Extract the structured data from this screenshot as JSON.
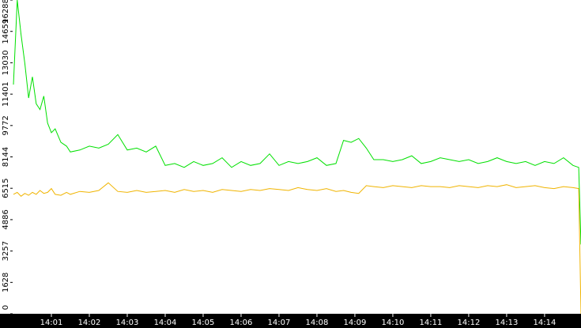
{
  "chart_data": {
    "type": "line",
    "x": [
      0,
      0.1,
      0.2,
      0.3,
      0.4,
      0.5,
      0.6,
      0.7,
      0.8,
      0.9,
      1.0,
      1.1,
      1.25,
      1.4,
      1.5,
      1.75,
      2.0,
      2.25,
      2.5,
      2.75,
      3.0,
      3.25,
      3.5,
      3.75,
      4.0,
      4.25,
      4.5,
      4.75,
      5.0,
      5.25,
      5.5,
      5.75,
      6.0,
      6.25,
      6.5,
      6.75,
      7.0,
      7.25,
      7.5,
      7.75,
      8.0,
      8.25,
      8.5,
      8.7,
      8.9,
      9.1,
      9.3,
      9.5,
      9.75,
      10.0,
      10.25,
      10.5,
      10.75,
      11.0,
      11.25,
      11.5,
      11.75,
      12.0,
      12.25,
      12.5,
      12.75,
      13.0,
      13.25,
      13.5,
      13.75,
      14.0,
      14.25,
      14.5,
      14.75,
      14.9,
      14.96
    ],
    "series": [
      {
        "color": "#00e000",
        "values": [
          11900,
          16288,
          14500,
          13000,
          11200,
          12300,
          10900,
          10600,
          11300,
          9900,
          9400,
          9600,
          8900,
          8700,
          8400,
          8500,
          8700,
          8600,
          8800,
          9300,
          8500,
          8600,
          8400,
          8700,
          7700,
          7800,
          7600,
          7900,
          7700,
          7800,
          8100,
          7600,
          7900,
          7700,
          7800,
          8300,
          7700,
          7900,
          7800,
          7900,
          8100,
          7700,
          7800,
          9000,
          8900,
          9100,
          8600,
          8000,
          8000,
          7900,
          8000,
          8200,
          7800,
          7900,
          8100,
          8000,
          7900,
          8000,
          7800,
          7900,
          8100,
          7900,
          7800,
          7900,
          7700,
          7900,
          7800,
          8100,
          7700,
          7600,
          3600
        ]
      },
      {
        "color": "#f0b400",
        "values": [
          6200,
          6300,
          6100,
          6250,
          6150,
          6300,
          6200,
          6400,
          6250,
          6300,
          6500,
          6200,
          6150,
          6300,
          6200,
          6350,
          6300,
          6400,
          6800,
          6350,
          6300,
          6400,
          6300,
          6350,
          6400,
          6300,
          6450,
          6350,
          6400,
          6300,
          6450,
          6400,
          6350,
          6450,
          6400,
          6500,
          6450,
          6400,
          6550,
          6450,
          6400,
          6500,
          6350,
          6400,
          6300,
          6250,
          6650,
          6600,
          6550,
          6650,
          6600,
          6550,
          6650,
          6600,
          6600,
          6550,
          6650,
          6600,
          6550,
          6650,
          6600,
          6700,
          6550,
          6600,
          6650,
          6550,
          6500,
          6600,
          6550,
          6500,
          0
        ]
      }
    ],
    "xlim": [
      0,
      14.96
    ],
    "xticks": [
      {
        "value": 1,
        "label": "14:01"
      },
      {
        "value": 2,
        "label": "14:02"
      },
      {
        "value": 3,
        "label": "14:03"
      },
      {
        "value": 4,
        "label": "14:04"
      },
      {
        "value": 5,
        "label": "14:05"
      },
      {
        "value": 6,
        "label": "14:06"
      },
      {
        "value": 7,
        "label": "14:07"
      },
      {
        "value": 8,
        "label": "14:08"
      },
      {
        "value": 9,
        "label": "14:09"
      },
      {
        "value": 10,
        "label": "14:10"
      },
      {
        "value": 11,
        "label": "14:11"
      },
      {
        "value": 12,
        "label": "14:12"
      },
      {
        "value": 13,
        "label": "14:13"
      },
      {
        "value": 14,
        "label": "14:14"
      }
    ],
    "ylim": [
      0,
      16288
    ],
    "yticks": [
      0,
      1628,
      3257,
      4886,
      6515,
      8144,
      9772,
      11401,
      13030,
      14659,
      16288
    ]
  }
}
